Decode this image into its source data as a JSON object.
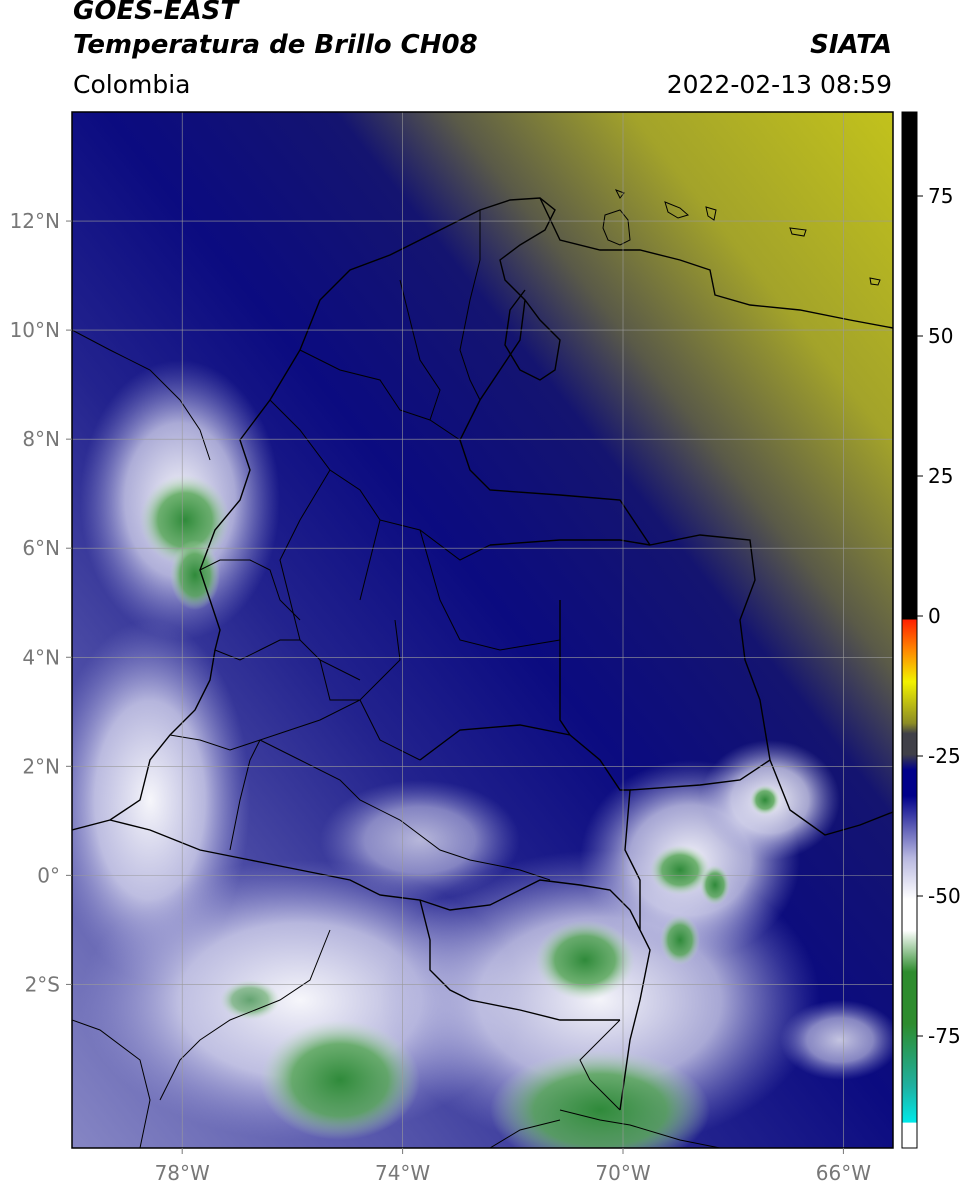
{
  "header": {
    "satellite": "GOES-EAST",
    "product": "Temperatura de Brillo CH08",
    "agency": "SIATA",
    "region": "Colombia",
    "datetime": "2022-02-13 08:59"
  },
  "map": {
    "extent": {
      "lon_min": -80,
      "lon_max": -65.1,
      "lat_min": -5.0,
      "lat_max": 14.0
    },
    "lat_ticks": [
      "12°N",
      "10°N",
      "8°N",
      "6°N",
      "4°N",
      "2°N",
      "0°",
      "2°S"
    ],
    "lat_tick_values": [
      12,
      10,
      8,
      6,
      4,
      2,
      0,
      -2
    ],
    "lon_ticks": [
      "78°W",
      "74°W",
      "70°W",
      "66°W"
    ],
    "lon_tick_values": [
      -78,
      -74,
      -70,
      -66
    ],
    "colors": {
      "clear_sky_dry": "#b8b820",
      "mid_level": "#10107a",
      "cold_clouds_white": "#f0f0ff",
      "very_cold_green": "#3c9a3c"
    }
  },
  "colorbar": {
    "ticks": [
      "75",
      "50",
      "25",
      "0",
      "-25",
      "-50",
      "-75"
    ],
    "tick_values": [
      75,
      50,
      25,
      0,
      -25,
      -50,
      -75
    ],
    "range": [
      -95,
      90
    ],
    "colors": {
      "warm_black": "#000000",
      "red": "#ff2000",
      "orange": "#ff8a00",
      "yellow": "#f2f200",
      "olive": "#8c8c24",
      "gray": "#404048",
      "navy": "#00008a",
      "lavender": "#b8b8e0",
      "white": "#ffffff",
      "green": "#2e8c2e",
      "teal": "#20b0a0",
      "cyan": "#00e8e8"
    }
  }
}
